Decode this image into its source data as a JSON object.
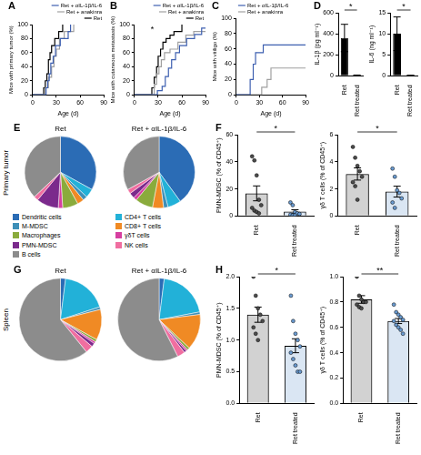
{
  "chart_data": [
    {
      "panel": "A",
      "type": "line",
      "line_style": "steps",
      "grid": false,
      "legend": "top-right",
      "x_label": "Age (d)",
      "y_label": "Mice with primary tumor (%)",
      "xlim": [
        0,
        90
      ],
      "xticks": [
        0,
        30,
        60,
        90
      ],
      "ylim": [
        0,
        100
      ],
      "yticks": [
        0,
        20,
        40,
        60,
        80,
        100
      ],
      "series": [
        {
          "name": "Ret + αIL-1β/IL-6",
          "color": "#3d5fb0",
          "x": [
            0,
            15,
            17,
            19,
            21,
            23,
            26,
            29,
            35,
            45,
            48
          ],
          "values": [
            0,
            0,
            10,
            20,
            30,
            45,
            55,
            70,
            80,
            90,
            100
          ]
        },
        {
          "name": "Ret + anakinra",
          "color": "#a0a0a0",
          "x": [
            0,
            14,
            16,
            20,
            24,
            27,
            30,
            34,
            40,
            52
          ],
          "values": [
            0,
            0,
            10,
            25,
            40,
            55,
            65,
            80,
            90,
            100
          ]
        },
        {
          "name": "Ret",
          "color": "#000000",
          "x": [
            0,
            12,
            14,
            16,
            18,
            20,
            22,
            24,
            28,
            33,
            38
          ],
          "values": [
            0,
            0,
            10,
            20,
            30,
            50,
            60,
            70,
            80,
            90,
            100
          ]
        }
      ]
    },
    {
      "panel": "B",
      "type": "line",
      "line_style": "steps",
      "grid": false,
      "legend": "top-right",
      "annotation": "*",
      "x_label": "Age (d)",
      "y_label": "Mice with cutaneous metastasis (%)",
      "xlim": [
        0,
        90
      ],
      "xticks": [
        0,
        30,
        60,
        90
      ],
      "ylim": [
        0,
        100
      ],
      "yticks": [
        0,
        20,
        40,
        60,
        80,
        100
      ],
      "series": [
        {
          "name": "Ret + αIL-1β/IL-6",
          "color": "#3d5fb0",
          "x": [
            0,
            26,
            29,
            35,
            39,
            43,
            47,
            52,
            57,
            66,
            76,
            85,
            90
          ],
          "values": [
            0,
            0,
            6,
            12,
            26,
            38,
            50,
            60,
            70,
            80,
            86,
            95,
            95
          ]
        },
        {
          "name": "Ret + anakinra",
          "color": "#a0a0a0",
          "x": [
            0,
            22,
            25,
            28,
            31,
            34,
            38,
            45,
            55,
            65,
            75,
            90
          ],
          "values": [
            0,
            0,
            15,
            30,
            40,
            50,
            60,
            65,
            75,
            85,
            90,
            90
          ]
        },
        {
          "name": "Ret",
          "color": "#000000",
          "x": [
            0,
            20,
            22,
            25,
            28,
            30,
            33,
            36,
            40,
            45,
            50,
            60
          ],
          "values": [
            0,
            0,
            10,
            25,
            40,
            55,
            65,
            75,
            80,
            85,
            90,
            100
          ]
        }
      ]
    },
    {
      "panel": "C",
      "type": "line",
      "line_style": "steps",
      "grid": false,
      "legend": "top-left",
      "x_label": "Age (d)",
      "y_label": "Mice with vitiligo (%)",
      "xlim": [
        0,
        90
      ],
      "xticks": [
        0,
        30,
        60,
        90
      ],
      "ylim": [
        0,
        100
      ],
      "yticks": [
        0,
        20,
        40,
        60,
        80,
        100
      ],
      "series": [
        {
          "name": "Ret + αIL-1β/IL-6",
          "color": "#3d5fb0",
          "x": [
            0,
            15,
            18,
            22,
            25,
            35,
            90
          ],
          "values": [
            0,
            0,
            20,
            40,
            55,
            65,
            65
          ]
        },
        {
          "name": "Ret + anakinra",
          "color": "#a0a0a0",
          "x": [
            0,
            30,
            33,
            40,
            45,
            90
          ],
          "values": [
            0,
            0,
            10,
            20,
            35,
            35
          ]
        }
      ]
    },
    {
      "panel": "D",
      "type": "bar",
      "grid": false,
      "annotation": "*",
      "y_label": "IL-1β (pg ml⁻¹)",
      "categories": [
        "Ret",
        "Ret treated"
      ],
      "values": [
        360,
        5
      ],
      "errors": [
        130,
        3
      ],
      "colors": [
        "#000000",
        "#000000"
      ],
      "ylim": [
        0,
        600
      ],
      "yticks": [
        0,
        200,
        400,
        600
      ]
    },
    {
      "type": "bar",
      "grid": false,
      "annotation": "*",
      "y_label": "IL-6 (ng ml⁻¹)",
      "categories": [
        "Ret",
        "Ret treated"
      ],
      "values": [
        10,
        0.1
      ],
      "errors": [
        4,
        0.05
      ],
      "colors": [
        "#000000",
        "#000000"
      ],
      "ylim": [
        0,
        15
      ],
      "yticks": [
        0,
        5,
        10,
        15
      ]
    },
    {
      "panel": "E",
      "type": "pie",
      "row_label": "Primary tumor",
      "title": "Ret",
      "legend": "bottom",
      "categories": [
        "Dendritic cells",
        "CD4+ T cells",
        "M-MDSC",
        "CD8+ T cells",
        "Macrophages",
        "γδT cells",
        "PMN-MDSC",
        "NK cells",
        "B cells"
      ],
      "values": [
        33,
        4,
        2,
        3,
        7,
        2,
        10,
        2,
        37
      ],
      "colors": [
        "#2b6cb5",
        "#22b1d8",
        "#3d8fb8",
        "#f08a24",
        "#8aab3c",
        "#d63fa0",
        "#7b2a8c",
        "#f06ea0",
        "#8c8c8c"
      ]
    },
    {
      "type": "pie",
      "title": "Ret + αIL-1β/IL-6",
      "categories": [
        "Dendritic cells",
        "CD4+ T cells",
        "M-MDSC",
        "CD8+ T cells",
        "Macrophages",
        "γδT cells",
        "PMN-MDSC",
        "NK cells",
        "B cells"
      ],
      "values": [
        40,
        6,
        2,
        5,
        8,
        1.5,
        2.5,
        2,
        33
      ],
      "colors": [
        "#2b6cb5",
        "#22b1d8",
        "#3d8fb8",
        "#f08a24",
        "#8aab3c",
        "#d63fa0",
        "#7b2a8c",
        "#f06ea0",
        "#8c8c8c"
      ]
    },
    {
      "panel": "F",
      "type": "bar",
      "grid": false,
      "annotation": "*",
      "y_label": "PMN-MDSC (% of CD45⁺)",
      "categories": [
        "Ret",
        "Ret treated"
      ],
      "values": [
        16.7,
        3.3
      ],
      "errors": [
        5.5,
        1.3
      ],
      "colors": [
        "#4d4d4d",
        "#6a9bd1"
      ],
      "points": [
        [
          44,
          41,
          30,
          12,
          8,
          6,
          4,
          3,
          2
        ],
        [
          10,
          8,
          3,
          2,
          1.5,
          1,
          0.5,
          0.5
        ]
      ],
      "ylim": [
        0,
        60
      ],
      "yticks": [
        0,
        20,
        40,
        60
      ]
    },
    {
      "type": "bar",
      "grid": false,
      "annotation": "*",
      "y_label": "γδ T cells (% of CD45⁺)",
      "categories": [
        "Ret",
        "Ret treated"
      ],
      "values": [
        3.1,
        1.8
      ],
      "errors": [
        0.45,
        0.4
      ],
      "colors": [
        "#4d4d4d",
        "#6a9bd1"
      ],
      "points": [
        [
          5.1,
          4.3,
          3.7,
          3.3,
          2.9,
          2.5,
          2.2,
          1.2
        ],
        [
          3.5,
          2.9,
          1.9,
          1.7,
          1.3,
          1.0,
          0.6
        ]
      ],
      "ylim": [
        0,
        6
      ],
      "yticks": [
        0,
        2,
        4,
        6
      ]
    },
    {
      "panel": "G",
      "type": "pie",
      "row_label": "Spleen",
      "title": "Ret",
      "categories": [
        "Dendritic cells",
        "CD4+ T cells",
        "M-MDSC",
        "CD8+ T cells",
        "Macrophages",
        "γδT cells",
        "PMN-MDSC",
        "NK cells",
        "B cells"
      ],
      "values": [
        2,
        18,
        1,
        12,
        1,
        0.8,
        1.4,
        3,
        60.8
      ],
      "colors": [
        "#2b6cb5",
        "#22b1d8",
        "#3d8fb8",
        "#f08a24",
        "#8aab3c",
        "#d63fa0",
        "#7b2a8c",
        "#f06ea0",
        "#8c8c8c"
      ]
    },
    {
      "type": "pie",
      "title": "Ret + αIL-1β/IL-6",
      "categories": [
        "Dendritic cells",
        "CD4+ T cells",
        "M-MDSC",
        "CD8+ T cells",
        "Macrophages",
        "γδT cells",
        "PMN-MDSC",
        "NK cells",
        "B cells"
      ],
      "values": [
        2,
        20,
        1,
        14,
        1,
        0.65,
        0.9,
        3,
        57.45
      ],
      "colors": [
        "#2b6cb5",
        "#22b1d8",
        "#3d8fb8",
        "#f08a24",
        "#8aab3c",
        "#d63fa0",
        "#7b2a8c",
        "#f06ea0",
        "#8c8c8c"
      ]
    },
    {
      "panel": "H",
      "type": "bar",
      "grid": false,
      "annotation": "*",
      "y_label": "PMN-MDSC (% of CD45⁺)",
      "categories": [
        "Ret",
        "Ret treated"
      ],
      "values": [
        1.4,
        0.91
      ],
      "errors": [
        0.12,
        0.11
      ],
      "colors": [
        "#4d4d4d",
        "#6a9bd1"
      ],
      "points": [
        [
          2.0,
          1.7,
          1.5,
          1.4,
          1.3,
          1.2,
          1.1,
          1.0
        ],
        [
          1.7,
          1.3,
          1.1,
          1.0,
          0.9,
          0.8,
          0.7,
          0.6,
          0.5,
          0.5
        ]
      ],
      "ylim": [
        0,
        2
      ],
      "yticks": [
        {
          "value": 0,
          "label": "0.0"
        },
        0.5,
        {
          "value": 1,
          "label": "1.0"
        },
        1.5,
        {
          "value": 2,
          "label": "2.0"
        }
      ]
    },
    {
      "type": "bar",
      "grid": false,
      "annotation": "**",
      "y_label": "γδ T cells (% of CD45⁺)",
      "categories": [
        "Ret",
        "Ret treated"
      ],
      "values": [
        0.82,
        0.65
      ],
      "errors": [
        0.03,
        0.02
      ],
      "colors": [
        "#4d4d4d",
        "#6a9bd1"
      ],
      "points": [
        [
          1.0,
          0.85,
          0.82,
          0.8,
          0.8,
          0.78,
          0.76,
          0.75
        ],
        [
          0.78,
          0.72,
          0.7,
          0.68,
          0.66,
          0.65,
          0.62,
          0.6,
          0.58,
          0.55
        ]
      ],
      "ylim": [
        0,
        1
      ],
      "yticks": [
        {
          "value": 0,
          "label": "0.0"
        },
        0.2,
        0.4,
        0.6,
        0.8,
        {
          "value": 1,
          "label": "1.0"
        }
      ]
    }
  ]
}
